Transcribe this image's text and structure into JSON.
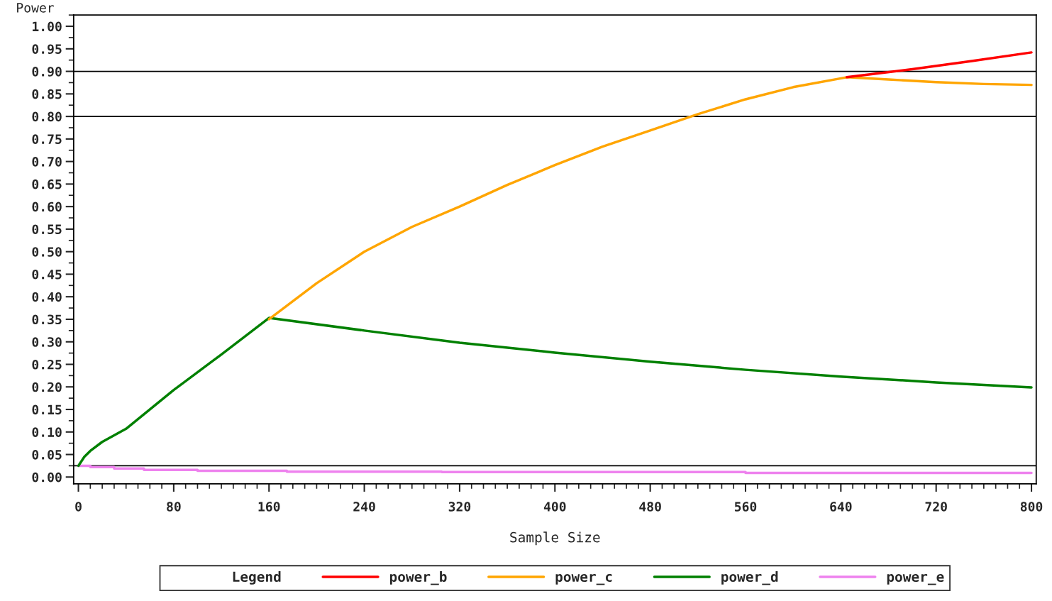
{
  "chart_data": {
    "type": "line",
    "xlabel": "Sample Size",
    "ylabel": "Power",
    "legend_title": "Legend",
    "xlim": [
      -4,
      804
    ],
    "ylim": [
      -0.015,
      1.025
    ],
    "xticks": [
      0,
      80,
      160,
      240,
      320,
      400,
      480,
      560,
      640,
      720,
      800
    ],
    "yticks": [
      {
        "value": 0,
        "label": "0.00"
      },
      {
        "value": 0.05,
        "label": "0.05"
      },
      {
        "value": 0.1,
        "label": "0.10"
      },
      {
        "value": 0.15,
        "label": "0.15"
      },
      {
        "value": 0.2,
        "label": "0.20"
      },
      {
        "value": 0.25,
        "label": "0.25"
      },
      {
        "value": 0.3,
        "label": "0.30"
      },
      {
        "value": 0.35,
        "label": "0.35"
      },
      {
        "value": 0.4,
        "label": "0.40"
      },
      {
        "value": 0.45,
        "label": "0.45"
      },
      {
        "value": 0.5,
        "label": "0.50"
      },
      {
        "value": 0.55,
        "label": "0.55"
      },
      {
        "value": 0.6,
        "label": "0.60"
      },
      {
        "value": 0.65,
        "label": "0.65"
      },
      {
        "value": 0.7,
        "label": "0.70"
      },
      {
        "value": 0.75,
        "label": "0.75"
      },
      {
        "value": 0.8,
        "label": "0.80"
      },
      {
        "value": 0.85,
        "label": "0.85"
      },
      {
        "value": 0.9,
        "label": "0.90"
      },
      {
        "value": 0.95,
        "label": "0.95"
      },
      {
        "value": 1,
        "label": "1.00"
      }
    ],
    "grid": false,
    "legend": "bottom",
    "marker": "none",
    "line_style": "solid",
    "ref_lines": [
      {
        "axis": "y",
        "value": 0.9,
        "color": "#000000"
      },
      {
        "axis": "y",
        "value": 0.8,
        "color": "#000000"
      },
      {
        "axis": "y",
        "value": 0.025,
        "color": "#000000"
      }
    ],
    "series": [
      {
        "name": "power_b",
        "color": "#ff0000",
        "x": [
          645,
          700,
          750,
          800
        ],
        "values": [
          0.887,
          0.905,
          0.923,
          0.942
        ]
      },
      {
        "name": "power_c",
        "color": "#ffa500",
        "x": [
          160,
          200,
          240,
          280,
          320,
          360,
          400,
          440,
          480,
          520,
          560,
          600,
          645,
          680,
          720,
          760,
          800
        ],
        "values": [
          0.35,
          0.43,
          0.5,
          0.555,
          0.6,
          0.648,
          0.692,
          0.733,
          0.769,
          0.805,
          0.838,
          0.865,
          0.887,
          0.882,
          0.876,
          0.872,
          0.87
        ]
      },
      {
        "name": "power_d",
        "color": "#008000",
        "x": [
          0,
          5,
          10,
          20,
          40,
          80,
          120,
          160,
          240,
          320,
          400,
          480,
          560,
          640,
          720,
          800
        ],
        "values": [
          0.025,
          0.045,
          0.058,
          0.078,
          0.107,
          0.193,
          0.272,
          0.353,
          0.325,
          0.298,
          0.276,
          0.256,
          0.238,
          0.223,
          0.21,
          0.199
        ]
      },
      {
        "name": "power_e",
        "type": "step",
        "color": "#ee82ee",
        "x": [
          0,
          10,
          30,
          55,
          100,
          175,
          305,
          560,
          800
        ],
        "values": [
          0.025,
          0.022,
          0.019,
          0.016,
          0.014,
          0.012,
          0.011,
          0.009,
          0.009
        ]
      }
    ]
  }
}
